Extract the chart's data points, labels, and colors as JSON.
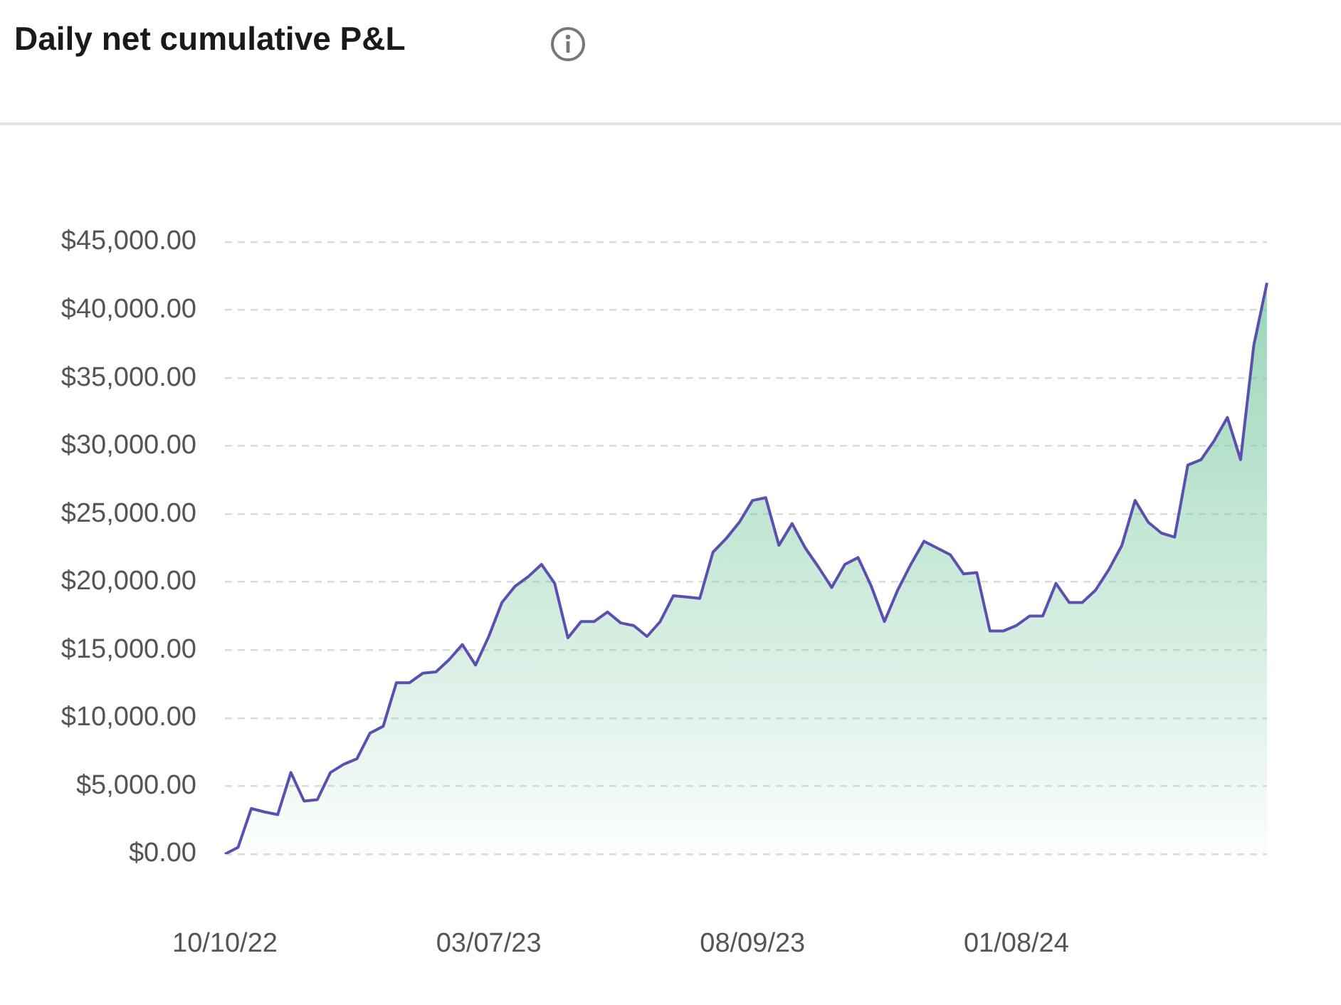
{
  "chart_data": {
    "type": "area",
    "title": "Daily net cumulative P&L",
    "categories": [
      "10/10/22",
      null,
      null,
      null,
      null,
      null,
      null,
      null,
      null,
      null,
      null,
      null,
      null,
      null,
      null,
      null,
      null,
      null,
      null,
      null,
      "03/07/23",
      null,
      null,
      null,
      null,
      null,
      null,
      null,
      null,
      null,
      null,
      null,
      null,
      null,
      null,
      null,
      null,
      null,
      null,
      null,
      "08/09/23",
      null,
      null,
      null,
      null,
      null,
      null,
      null,
      null,
      null,
      null,
      null,
      null,
      null,
      null,
      null,
      null,
      null,
      null,
      null,
      "01/08/24",
      null,
      null,
      null,
      null,
      null,
      null,
      null,
      null,
      null,
      null,
      null,
      null,
      null,
      null,
      null,
      null,
      null,
      null,
      null
    ],
    "series": [
      {
        "color": "#5b4fb0",
        "values": [
          0,
          500,
          3350,
          3100,
          2900,
          6000,
          3900,
          4000,
          6000,
          6600,
          7000,
          8900,
          9400,
          12600,
          12600,
          13300,
          13400,
          14300,
          15400,
          13900,
          16000,
          18500,
          19700,
          20400,
          21300,
          19900,
          15900,
          17100,
          17100,
          17800,
          17000,
          16800,
          16000,
          17100,
          19000,
          18900,
          18800,
          22200,
          23200,
          24400,
          26000,
          26200,
          22700,
          24300,
          22500,
          21100,
          19600,
          21300,
          21800,
          19700,
          17100,
          19400,
          21300,
          23000,
          22500,
          22000,
          20600,
          20700,
          16400,
          16400,
          16800,
          17500,
          17500,
          19900,
          18500,
          18500,
          19400,
          20900,
          22700,
          26000,
          24400,
          23600,
          23300,
          28600,
          29000,
          30400,
          32100,
          29000,
          37400,
          42000
        ]
      }
    ],
    "ylim": [
      0,
      45000
    ],
    "yticks": [
      {
        "value": 0,
        "label": "$0.00"
      },
      {
        "value": 5000,
        "label": "$5,000.00"
      },
      {
        "value": 10000,
        "label": "$10,000.00"
      },
      {
        "value": 15000,
        "label": "$15,000.00"
      },
      {
        "value": 20000,
        "label": "$20,000.00"
      },
      {
        "value": 25000,
        "label": "$25,000.00"
      },
      {
        "value": 30000,
        "label": "$30,000.00"
      },
      {
        "value": 35000,
        "label": "$35,000.00"
      },
      {
        "value": 40000,
        "label": "$40,000.00"
      },
      {
        "value": 45000,
        "label": "$45,000.00"
      }
    ],
    "grid": "y",
    "legend": false
  }
}
